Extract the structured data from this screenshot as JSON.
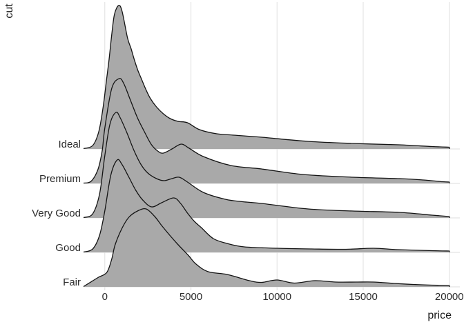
{
  "style": {
    "background": "#ffffff",
    "ridge_fill": "#a9a9a9",
    "ridge_stroke": "#141414",
    "gridline": "#e4e4e4",
    "tick_text": "#2b2b2b",
    "title_text": "#1a1a1a"
  },
  "chart_data": {
    "type": "area",
    "variant": "ridgeline-density",
    "title": "",
    "xlabel": "price",
    "ylabel": "cut",
    "x_range": [
      0,
      20000
    ],
    "grid": "vertical-at-ticks-and-horizontal-at-row-baselines",
    "legend": "none",
    "x_ticks": [
      {
        "value": 0,
        "label": "0"
      },
      {
        "value": 5000,
        "label": "5000"
      },
      {
        "value": 10000,
        "label": "10000"
      },
      {
        "value": 15000,
        "label": "15000"
      },
      {
        "value": 20000,
        "label": "20000"
      }
    ],
    "categories": [
      "Ideal",
      "Premium",
      "Very Good",
      "Good",
      "Fair"
    ],
    "height_units": "multiples of one category row spacing",
    "series": [
      {
        "name": "Ideal",
        "points": [
          [
            -1240,
            0.01
          ],
          [
            -700,
            0.1
          ],
          [
            -350,
            0.5
          ],
          [
            -100,
            1.2
          ],
          [
            100,
            2.0
          ],
          [
            250,
            2.6
          ],
          [
            400,
            3.3
          ],
          [
            560,
            3.9
          ],
          [
            800,
            4.16
          ],
          [
            1000,
            4.0
          ],
          [
            1320,
            3.22
          ],
          [
            1520,
            2.92
          ],
          [
            1720,
            2.58
          ],
          [
            1920,
            2.28
          ],
          [
            2120,
            2.04
          ],
          [
            2390,
            1.72
          ],
          [
            2650,
            1.46
          ],
          [
            3000,
            1.22
          ],
          [
            3400,
            1.02
          ],
          [
            3800,
            0.88
          ],
          [
            4250,
            0.8
          ],
          [
            4800,
            0.76
          ],
          [
            5500,
            0.56
          ],
          [
            6500,
            0.44
          ],
          [
            7500,
            0.4
          ],
          [
            9120,
            0.34
          ],
          [
            11800,
            0.22
          ],
          [
            14400,
            0.16
          ],
          [
            17100,
            0.12
          ],
          [
            19000,
            0.07
          ],
          [
            20000,
            0.05
          ]
        ]
      },
      {
        "name": "Premium",
        "points": [
          [
            -1240,
            0.01
          ],
          [
            -800,
            0.06
          ],
          [
            -400,
            0.4
          ],
          [
            -150,
            0.95
          ],
          [
            0,
            1.6
          ],
          [
            400,
            2.75
          ],
          [
            830,
            3.04
          ],
          [
            1100,
            2.9
          ],
          [
            1500,
            2.4
          ],
          [
            1900,
            1.9
          ],
          [
            2300,
            1.5
          ],
          [
            2700,
            1.13
          ],
          [
            3100,
            0.93
          ],
          [
            3400,
            0.88
          ],
          [
            3900,
            1.0
          ],
          [
            4440,
            1.14
          ],
          [
            4900,
            1.02
          ],
          [
            5720,
            0.78
          ],
          [
            7320,
            0.52
          ],
          [
            9100,
            0.42
          ],
          [
            11500,
            0.26
          ],
          [
            14400,
            0.18
          ],
          [
            17100,
            0.14
          ],
          [
            18500,
            0.1
          ],
          [
            19600,
            0.05
          ],
          [
            20000,
            0.04
          ]
        ]
      },
      {
        "name": "Very Good",
        "points": [
          [
            -1240,
            0.01
          ],
          [
            -700,
            0.12
          ],
          [
            -300,
            0.7
          ],
          [
            0,
            1.8
          ],
          [
            300,
            2.72
          ],
          [
            650,
            3.06
          ],
          [
            900,
            2.9
          ],
          [
            1300,
            2.45
          ],
          [
            1700,
            1.95
          ],
          [
            2100,
            1.55
          ],
          [
            2500,
            1.3
          ],
          [
            3000,
            1.14
          ],
          [
            3440,
            1.08
          ],
          [
            3900,
            1.14
          ],
          [
            4320,
            1.18
          ],
          [
            4800,
            1.04
          ],
          [
            5720,
            0.74
          ],
          [
            7000,
            0.54
          ],
          [
            8000,
            0.47
          ],
          [
            9100,
            0.42
          ],
          [
            11800,
            0.26
          ],
          [
            14400,
            0.2
          ],
          [
            17100,
            0.16
          ],
          [
            19000,
            0.08
          ],
          [
            20000,
            0.04
          ]
        ]
      },
      {
        "name": "Good",
        "points": [
          [
            -1240,
            0.01
          ],
          [
            -700,
            0.1
          ],
          [
            -300,
            0.5
          ],
          [
            0,
            1.2
          ],
          [
            350,
            2.24
          ],
          [
            720,
            2.68
          ],
          [
            1000,
            2.55
          ],
          [
            1400,
            2.18
          ],
          [
            1800,
            1.8
          ],
          [
            2200,
            1.52
          ],
          [
            2720,
            1.32
          ],
          [
            3300,
            1.44
          ],
          [
            4000,
            1.58
          ],
          [
            4400,
            1.42
          ],
          [
            4800,
            1.14
          ],
          [
            5200,
            0.9
          ],
          [
            5600,
            0.72
          ],
          [
            6300,
            0.4
          ],
          [
            7100,
            0.26
          ],
          [
            8100,
            0.16
          ],
          [
            10000,
            0.12
          ],
          [
            12000,
            0.1
          ],
          [
            14000,
            0.09
          ],
          [
            15600,
            0.12
          ],
          [
            17000,
            0.08
          ],
          [
            19000,
            0.05
          ],
          [
            20000,
            0.04
          ]
        ]
      },
      {
        "name": "Fair",
        "points": [
          [
            -1240,
            0.01
          ],
          [
            -880,
            0.12
          ],
          [
            -360,
            0.28
          ],
          [
            120,
            0.42
          ],
          [
            400,
            0.8
          ],
          [
            600,
            1.22
          ],
          [
            1000,
            1.7
          ],
          [
            1400,
            2.02
          ],
          [
            1900,
            2.2
          ],
          [
            2400,
            2.26
          ],
          [
            2900,
            2.04
          ],
          [
            3300,
            1.78
          ],
          [
            3800,
            1.48
          ],
          [
            4300,
            1.2
          ],
          [
            4840,
            0.92
          ],
          [
            5300,
            0.66
          ],
          [
            6000,
            0.44
          ],
          [
            7100,
            0.36
          ],
          [
            8400,
            0.18
          ],
          [
            9100,
            0.13
          ],
          [
            10000,
            0.2
          ],
          [
            11000,
            0.11
          ],
          [
            12200,
            0.18
          ],
          [
            13400,
            0.14
          ],
          [
            14600,
            0.14
          ],
          [
            15600,
            0.14
          ],
          [
            16800,
            0.1
          ],
          [
            17900,
            0.07
          ],
          [
            19000,
            0.05
          ],
          [
            20000,
            0.04
          ]
        ]
      }
    ]
  }
}
